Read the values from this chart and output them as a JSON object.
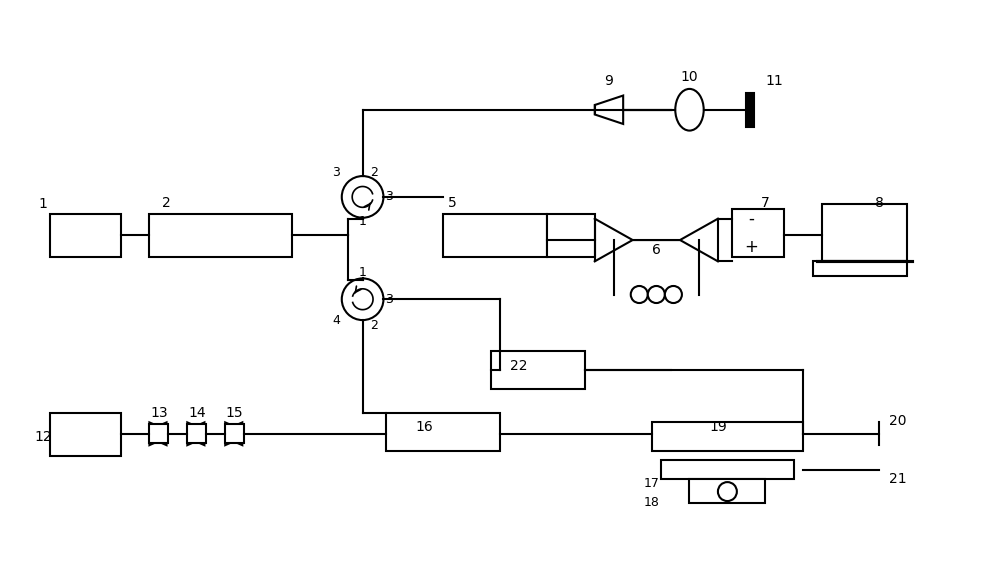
{
  "bg_color": "#ffffff",
  "line_color": "#000000",
  "line_width": 1.5,
  "fig_width": 10.0,
  "fig_height": 5.71
}
